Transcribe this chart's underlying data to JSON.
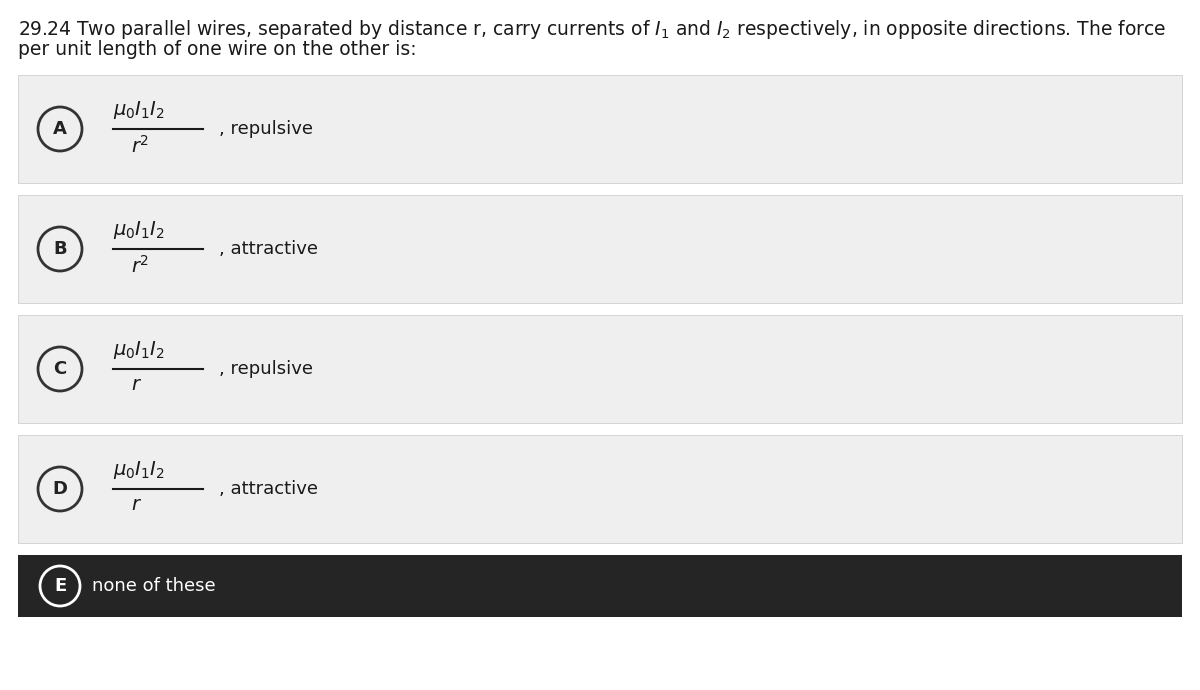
{
  "bg_color": "#ffffff",
  "option_bg": "#efefef",
  "option_e_bg": "#252525",
  "option_e_text_color": "#ffffff",
  "label_color": "#222222",
  "options": [
    {
      "label": "A",
      "formula_num": "$\\mu_0 I_1 I_2$",
      "formula_den": "$r^2$",
      "desc": ", repulsive"
    },
    {
      "label": "B",
      "formula_num": "$\\mu_0 I_1 I_2$",
      "formula_den": "$r^2$",
      "desc": ", attractive"
    },
    {
      "label": "C",
      "formula_num": "$\\mu_0 I_1 I_2$",
      "formula_den": "$r$",
      "desc": ", repulsive"
    },
    {
      "label": "D",
      "formula_num": "$\\mu_0 I_1 I_2$",
      "formula_den": "$r$",
      "desc": ", attractive"
    }
  ],
  "option_e_label": "E",
  "option_e_text": "none of these",
  "title_fontsize": 13.5,
  "label_fontsize": 13,
  "formula_fontsize": 14,
  "desc_fontsize": 13
}
